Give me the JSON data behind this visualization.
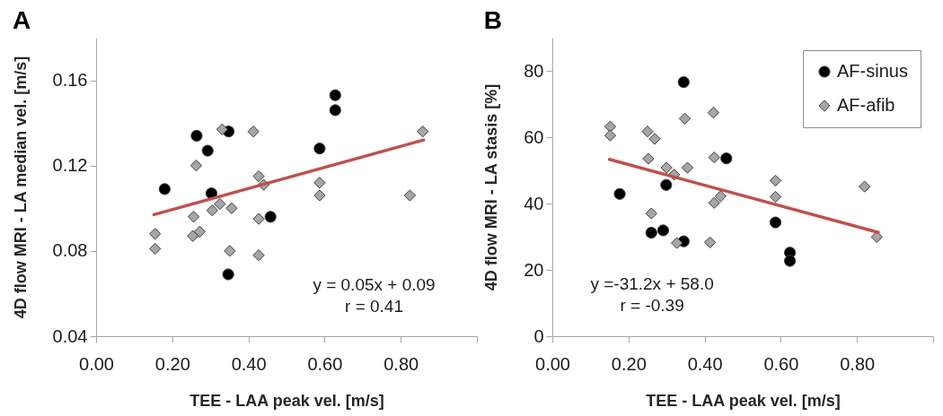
{
  "chart_data": [
    {
      "type": "scatter",
      "title": "A",
      "xlabel": "TEE - LAA peak vel. [m/s]",
      "ylabel": "4D flow MRI - LA median vel. [m/s]",
      "annotations": [
        "y = 0.05x + 0.09",
        "r = 0.41"
      ],
      "xlim": [
        0,
        1
      ],
      "xticks": [
        {
          "value": 0,
          "label": "0.00"
        },
        {
          "value": 0.2,
          "label": "0.20"
        },
        {
          "value": 0.4,
          "label": "0.40"
        },
        {
          "value": 0.6,
          "label": "0.60"
        },
        {
          "value": 0.8,
          "label": "0.80"
        },
        {
          "value": 1,
          "label": null
        }
      ],
      "ylim": [
        0.04,
        0.18
      ],
      "yticks": [
        0.04,
        0.08,
        0.12,
        0.16
      ],
      "series": [
        {
          "color": "#000000",
          "marker": "circle",
          "x": [
            0.18,
            0.264,
            0.293,
            0.303,
            0.348,
            0.347,
            0.458,
            0.587,
            0.628,
            0.628
          ],
          "values": [
            0.109,
            0.134,
            0.127,
            0.107,
            0.136,
            0.069,
            0.096,
            0.128,
            0.146,
            0.153
          ]
        },
        {
          "color": "#a6a6a6",
          "marker": "diamond",
          "x": [
            0.155,
            0.155,
            0.256,
            0.254,
            0.272,
            0.263,
            0.331,
            0.305,
            0.325,
            0.356,
            0.351,
            0.413,
            0.427,
            0.44,
            0.427,
            0.427,
            0.587,
            0.587,
            0.824,
            0.858
          ],
          "values": [
            0.088,
            0.081,
            0.096,
            0.087,
            0.089,
            0.12,
            0.137,
            0.099,
            0.102,
            0.1,
            0.08,
            0.136,
            0.115,
            0.111,
            0.095,
            0.078,
            0.112,
            0.106,
            0.106,
            0.136
          ]
        },
        {
          "type": "line",
          "color": "#c0504d",
          "x": [
            0.152,
            0.86
          ],
          "values": [
            0.097,
            0.132
          ]
        }
      ]
    },
    {
      "type": "scatter",
      "title": "B",
      "xlabel": "TEE - LAA peak vel. [m/s]",
      "ylabel": "4D flow MRI - LA stasis [%]",
      "annotations": [
        "y =-31.2x + 58.0",
        "r = -0.39"
      ],
      "xlim": [
        0,
        1
      ],
      "xticks": [
        {
          "value": 0,
          "label": "0.00"
        },
        {
          "value": 0.2,
          "label": "0.20"
        },
        {
          "value": 0.4,
          "label": "0.40"
        },
        {
          "value": 0.6,
          "label": "0.60"
        },
        {
          "value": 0.8,
          "label": "0.80"
        },
        {
          "value": 1,
          "label": null
        }
      ],
      "ylim": [
        0,
        90
      ],
      "yticks": [
        0,
        20,
        40,
        60,
        80
      ],
      "legend": "top right",
      "series": [
        {
          "name": "AF-sinus",
          "color": "#000000",
          "marker": "circle",
          "x": [
            0.177,
            0.26,
            0.291,
            0.299,
            0.345,
            0.345,
            0.457,
            0.586,
            0.624,
            0.624
          ],
          "values": [
            42.9,
            31.2,
            31.9,
            45.6,
            76.6,
            28.6,
            53.6,
            34.3,
            25.2,
            22.7
          ]
        },
        {
          "name": "AF-afib",
          "color": "#a6a6a6",
          "marker": "diamond",
          "x": [
            0.152,
            0.152,
            0.25,
            0.269,
            0.252,
            0.348,
            0.423,
            0.3,
            0.32,
            0.355,
            0.425,
            0.26,
            0.327,
            0.414,
            0.425,
            0.442,
            0.586,
            0.586,
            0.82,
            0.852
          ],
          "values": [
            63.2,
            60.5,
            61.7,
            59.5,
            53.5,
            65.6,
            67.4,
            50.8,
            48.7,
            50.8,
            53.9,
            37.0,
            28.1,
            28.3,
            40.2,
            42.2,
            46.9,
            42.0,
            45.1,
            29.9
          ]
        },
        {
          "type": "line",
          "color": "#c0504d",
          "x": [
            0.15,
            0.856
          ],
          "values": [
            53.3,
            31.3
          ]
        }
      ]
    }
  ]
}
